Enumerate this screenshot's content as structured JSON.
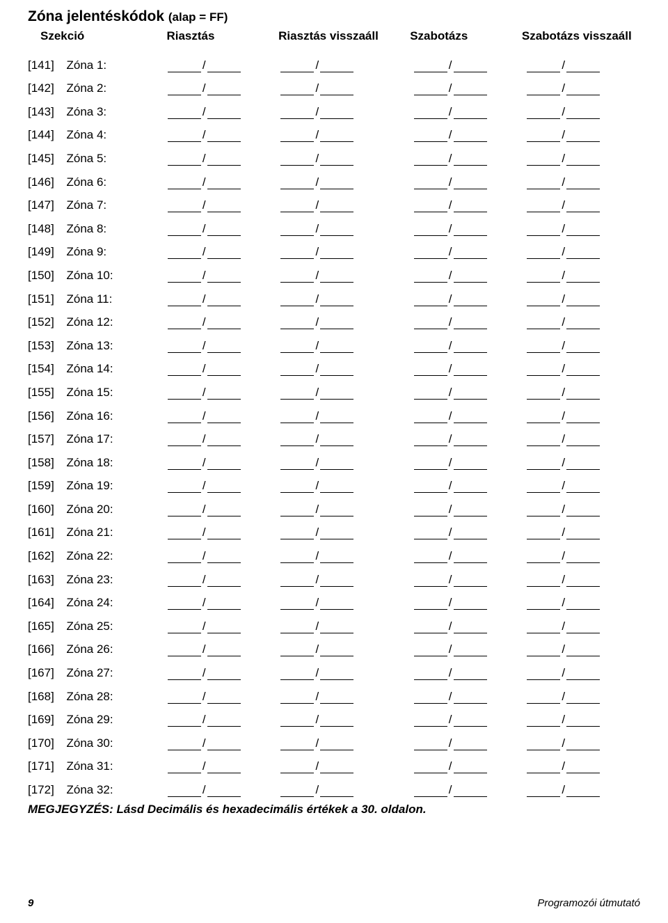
{
  "title_main": "Zóna jelentéskódok",
  "title_sub": "(alap = FF)",
  "headers": {
    "section": "Szekció",
    "alarm": "Riasztás",
    "restore": "Riasztás visszaáll",
    "sabotage": "Szabotázs",
    "sabotage_restore": "Szabotázs visszaáll"
  },
  "rows": [
    {
      "code": "[141]",
      "label": "Zóna 1:"
    },
    {
      "code": "[142]",
      "label": "Zóna 2:"
    },
    {
      "code": "[143]",
      "label": "Zóna 3:"
    },
    {
      "code": "[144]",
      "label": "Zóna 4:"
    },
    {
      "code": "[145]",
      "label": "Zóna 5:"
    },
    {
      "code": "[146]",
      "label": "Zóna 6:"
    },
    {
      "code": "[147]",
      "label": "Zóna 7:"
    },
    {
      "code": "[148]",
      "label": "Zóna 8:"
    },
    {
      "code": "[149]",
      "label": "Zóna 9:"
    },
    {
      "code": "[150]",
      "label": "Zóna 10:"
    },
    {
      "code": "[151]",
      "label": "Zóna 11:"
    },
    {
      "code": "[152]",
      "label": "Zóna 12:"
    },
    {
      "code": "[153]",
      "label": "Zóna 13:"
    },
    {
      "code": "[154]",
      "label": "Zóna 14:"
    },
    {
      "code": "[155]",
      "label": "Zóna 15:"
    },
    {
      "code": "[156]",
      "label": "Zóna 16:"
    },
    {
      "code": "[157]",
      "label": "Zóna 17:"
    },
    {
      "code": "[158]",
      "label": "Zóna 18:"
    },
    {
      "code": "[159]",
      "label": "Zóna 19:"
    },
    {
      "code": "[160]",
      "label": "Zóna 20:"
    },
    {
      "code": "[161]",
      "label": "Zóna 21:"
    },
    {
      "code": "[162]",
      "label": "Zóna 22:"
    },
    {
      "code": "[163]",
      "label": "Zóna 23:"
    },
    {
      "code": "[164]",
      "label": "Zóna 24:"
    },
    {
      "code": "[165]",
      "label": "Zóna 25:"
    },
    {
      "code": "[166]",
      "label": "Zóna 26:"
    },
    {
      "code": "[167]",
      "label": "Zóna 27:"
    },
    {
      "code": "[168]",
      "label": "Zóna 28:"
    },
    {
      "code": "[169]",
      "label": "Zóna 29:"
    },
    {
      "code": "[170]",
      "label": "Zóna 30:"
    },
    {
      "code": "[171]",
      "label": "Zóna 31:"
    },
    {
      "code": "[172]",
      "label": "Zóna 32:"
    }
  ],
  "note": "MEGJEGYZÉS: Lásd Decimális és hexadecimális értékek a 30. oldalon.",
  "footer": {
    "page": "9",
    "doc": "Programozói útmutató"
  },
  "style": {
    "slash": "/",
    "text_color": "#000000",
    "bg_color": "#ffffff",
    "underline_color": "#000000",
    "title_fontsize": 21,
    "body_fontsize": 17,
    "footer_fontsize": 15
  }
}
